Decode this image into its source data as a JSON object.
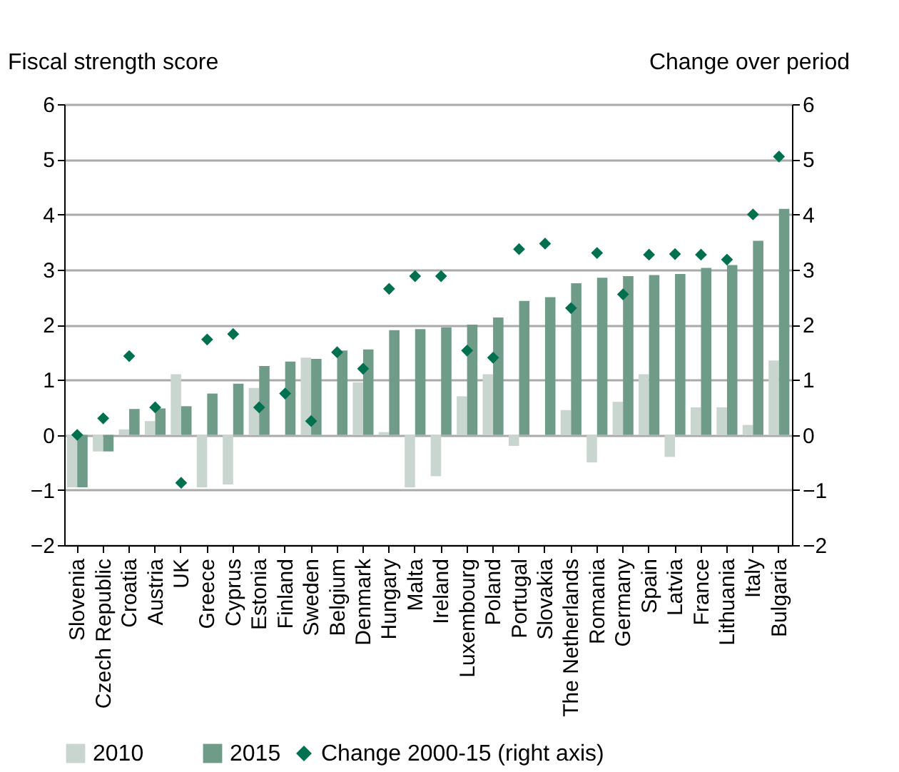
{
  "chart_data": {
    "type": "bar",
    "ylabel": "Fiscal strength score",
    "y2label": "Change over period",
    "categories": [
      "Slovenia",
      "Czech Republic",
      "Croatia",
      "Austria",
      "UK",
      "Greece",
      "Cyprus",
      "Estonia",
      "Finland",
      "Sweden",
      "Belgium",
      "Denmark",
      "Hungary",
      "Malta",
      "Ireland",
      "Luxembourg",
      "Poland",
      "Portugal",
      "Slovakia",
      "The Netherlands",
      "Romania",
      "Germany",
      "Spain",
      "Latvia",
      "France",
      "Lithuania",
      "Italy",
      "Bulgaria"
    ],
    "series": [
      {
        "name": "2010",
        "color": "#c9d6cf",
        "values": [
          -0.95,
          -0.3,
          0.1,
          0.25,
          1.1,
          -0.95,
          -0.9,
          0.85,
          0,
          1.4,
          0,
          0.95,
          0.05,
          -0.95,
          -0.75,
          0.7,
          1.1,
          -0.2,
          0,
          0.45,
          -0.5,
          0.6,
          1.1,
          -0.4,
          0.5,
          0.5,
          0.18,
          1.35
        ]
      },
      {
        "name": "2015",
        "color": "#6e9c88",
        "values": [
          -0.95,
          -0.3,
          0.47,
          0.48,
          0.52,
          0.75,
          0.93,
          1.25,
          1.33,
          1.38,
          1.53,
          1.55,
          1.9,
          1.92,
          1.95,
          2.0,
          2.13,
          2.43,
          2.5,
          2.75,
          2.85,
          2.88,
          2.9,
          2.92,
          3.03,
          3.08,
          3.52,
          4.1
        ]
      },
      {
        "name": "Change 2000-15 (right axis)",
        "type": "scatter",
        "axis": "y2",
        "marker": "diamond",
        "color": "#00704f",
        "values": [
          0,
          0.3,
          1.43,
          0.5,
          -0.87,
          1.73,
          1.83,
          0.5,
          0.75,
          0.25,
          1.5,
          1.2,
          2.65,
          2.88,
          2.88,
          1.53,
          1.4,
          3.37,
          3.47,
          2.3,
          3.3,
          2.55,
          3.27,
          3.28,
          3.27,
          3.18,
          4.0,
          5.05
        ]
      }
    ],
    "ylim": [
      -2,
      6
    ],
    "yticks": [
      -2,
      -1,
      0,
      1,
      2,
      3,
      4,
      5,
      6
    ],
    "y2lim": [
      -2,
      6
    ],
    "y2ticks": [
      -2,
      -1,
      0,
      1,
      2,
      3,
      4,
      5,
      6
    ],
    "grid": "y",
    "legend": "bottom"
  }
}
